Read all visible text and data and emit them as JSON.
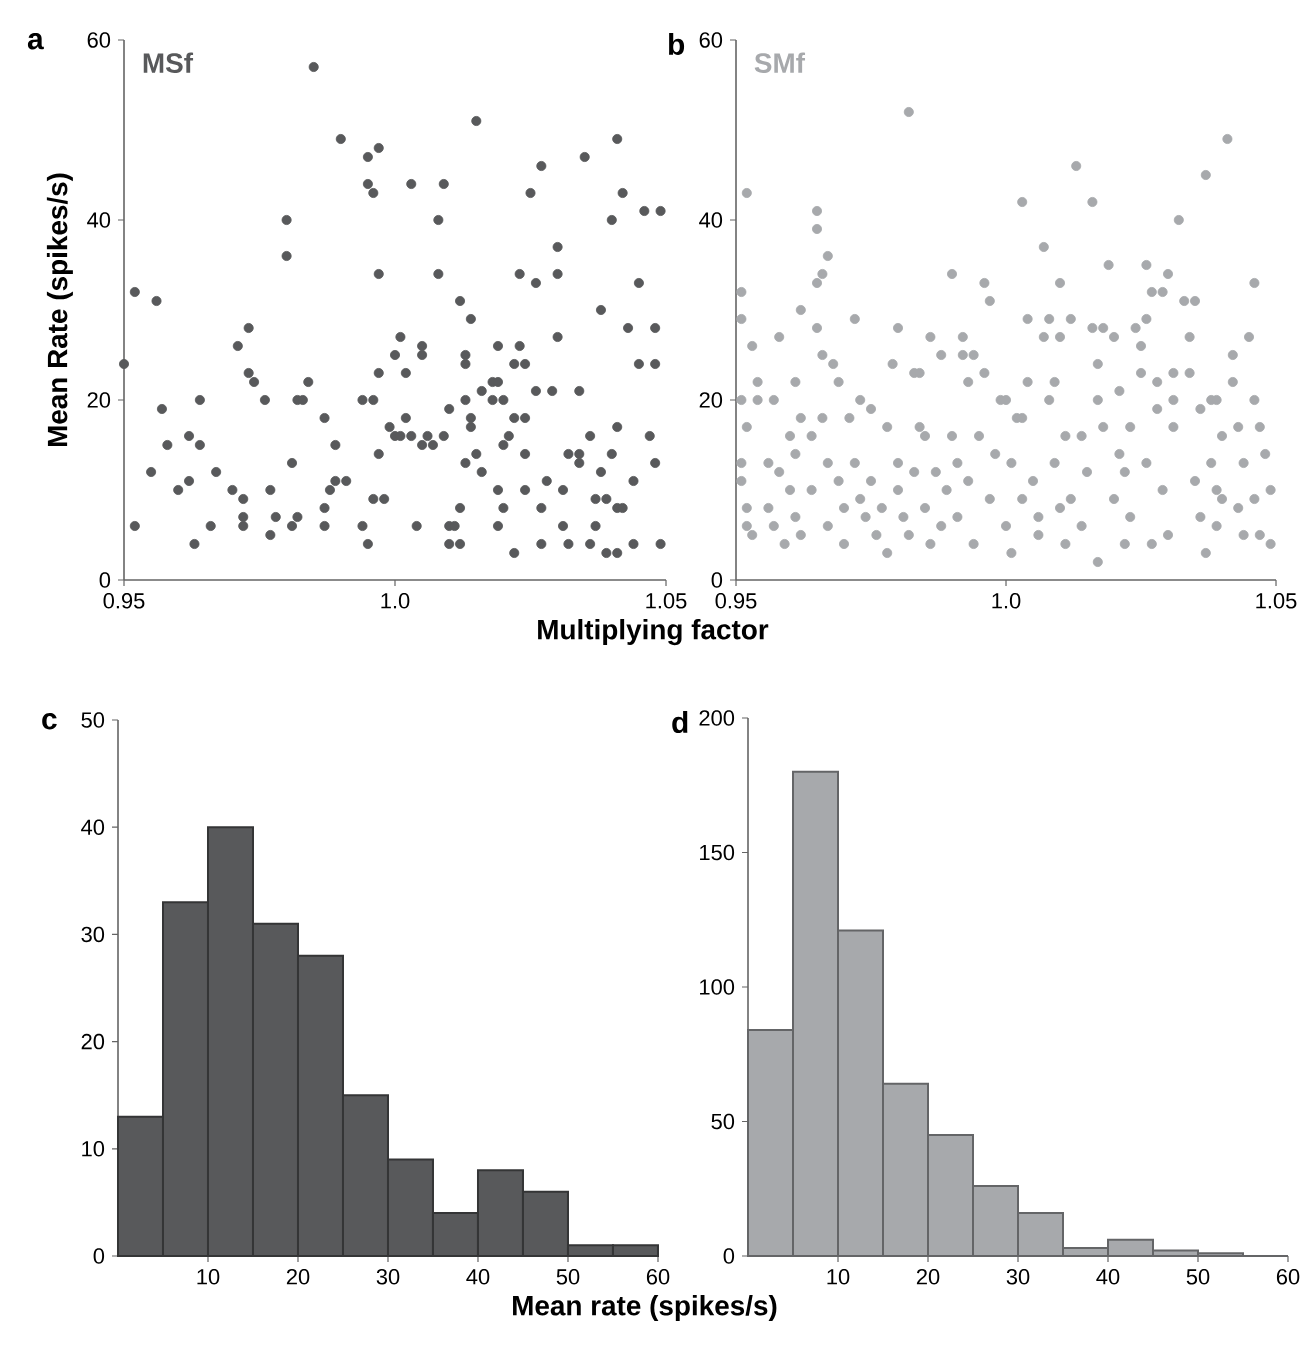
{
  "chart_data": [
    {
      "type": "scatter",
      "title": "a",
      "ylabel": "Mean Rate (spikes/s)",
      "xlabel": "Multiplying factor",
      "xlim": [
        0.95,
        1.05
      ],
      "ylim": [
        0,
        60
      ],
      "xticks": [
        0.95,
        {
          "value": 1.0,
          "label": "1.0"
        },
        1.05
      ],
      "yticks": [
        0,
        20,
        40,
        60
      ],
      "marker": "circle",
      "legend": "top left",
      "series": [
        {
          "name": "MSf",
          "color": "#58595b",
          "x": [
            0.95,
            0.952,
            0.952,
            0.955,
            0.956,
            0.957,
            0.958,
            0.96,
            0.962,
            0.962,
            0.963,
            0.964,
            0.964,
            0.966,
            0.967,
            0.97,
            0.971,
            0.972,
            0.972,
            0.972,
            0.973,
            0.973,
            0.974,
            0.976,
            0.977,
            0.977,
            0.978,
            0.98,
            0.98,
            0.981,
            0.981,
            0.982,
            0.982,
            0.983,
            0.984,
            0.985,
            0.987,
            0.987,
            0.987,
            0.988,
            0.989,
            0.989,
            0.99,
            0.991,
            0.994,
            0.994,
            0.995,
            0.995,
            0.996,
            0.995,
            0.996,
            0.996,
            0.997,
            0.997,
            0.997,
            0.997,
            0.998,
            0.999,
            1.0,
            1.0,
            1.001,
            1.001,
            1.002,
            1.002,
            1.003,
            1.003,
            1.004,
            1.005,
            1.005,
            1.005,
            1.006,
            1.007,
            1.008,
            1.008,
            1.009,
            1.009,
            1.01,
            1.01,
            1.01,
            1.011,
            1.012,
            1.012,
            1.012,
            1.013,
            1.013,
            1.013,
            1.013,
            1.014,
            1.014,
            1.014,
            1.015,
            1.015,
            1.016,
            1.016,
            1.018,
            1.018,
            1.019,
            1.019,
            1.019,
            1.019,
            1.02,
            1.02,
            1.02,
            1.021,
            1.022,
            1.022,
            1.022,
            1.023,
            1.023,
            1.024,
            1.024,
            1.024,
            1.024,
            1.025,
            1.026,
            1.026,
            1.027,
            1.027,
            1.027,
            1.028,
            1.029,
            1.03,
            1.03,
            1.03,
            1.031,
            1.031,
            1.032,
            1.032,
            1.034,
            1.034,
            1.034,
            1.035,
            1.036,
            1.036,
            1.037,
            1.037,
            1.038,
            1.038,
            1.039,
            1.039,
            1.04,
            1.04,
            1.041,
            1.041,
            1.041,
            1.041,
            1.042,
            1.042,
            1.043,
            1.044,
            1.044,
            1.045,
            1.045,
            1.046,
            1.049,
            1.049,
            1.048,
            1.048,
            1.047,
            1.048
          ],
          "values": [
            24,
            32,
            6,
            12,
            31,
            19,
            15,
            10,
            16,
            11,
            4,
            15,
            20,
            6,
            12,
            10,
            26,
            6,
            9,
            7,
            28,
            23,
            22,
            20,
            10,
            5,
            7,
            40,
            36,
            13,
            6,
            7,
            20,
            20,
            22,
            57,
            18,
            6,
            8,
            10,
            11,
            15,
            49,
            11,
            20,
            6,
            47,
            44,
            43,
            4,
            9,
            20,
            48,
            34,
            14,
            23,
            9,
            17,
            16,
            25,
            16,
            27,
            23,
            18,
            16,
            44,
            6,
            26,
            25,
            15,
            16,
            15,
            40,
            34,
            44,
            16,
            6,
            19,
            4,
            6,
            4,
            8,
            31,
            24,
            13,
            20,
            25,
            29,
            18,
            17,
            51,
            14,
            21,
            12,
            22,
            20,
            22,
            6,
            10,
            26,
            15,
            20,
            8,
            16,
            18,
            24,
            3,
            34,
            26,
            18,
            24,
            10,
            14,
            43,
            33,
            21,
            46,
            8,
            4,
            11,
            21,
            37,
            34,
            27,
            6,
            10,
            4,
            14,
            21,
            13,
            14,
            47,
            16,
            4,
            9,
            6,
            30,
            12,
            3,
            9,
            40,
            14,
            17,
            3,
            49,
            8,
            43,
            8,
            28,
            11,
            4,
            33,
            24,
            41,
            41,
            4,
            28,
            24,
            16,
            13
          ]
        }
      ]
    },
    {
      "type": "scatter",
      "title": "b",
      "xlim": [
        0.95,
        1.05
      ],
      "ylim": [
        0,
        60
      ],
      "xticks": [
        0.95,
        {
          "value": 1.0,
          "label": "1.0"
        },
        1.05
      ],
      "yticks": [
        0,
        20,
        40,
        60
      ],
      "marker": "circle",
      "legend": "top left",
      "series": [
        {
          "name": "SMf",
          "color": "#a7a9ac",
          "x": [
            0.951,
            0.951,
            0.952,
            0.953,
            0.951,
            0.952,
            0.951,
            0.951,
            0.952,
            0.952,
            0.953,
            0.954,
            0.954,
            0.956,
            0.956,
            0.957,
            0.957,
            0.958,
            0.958,
            0.959,
            0.96,
            0.96,
            0.961,
            0.961,
            0.961,
            0.962,
            0.962,
            0.962,
            0.964,
            0.964,
            0.965,
            0.965,
            0.965,
            0.965,
            0.966,
            0.966,
            0.967,
            0.966,
            0.967,
            0.967,
            0.968,
            0.969,
            0.969,
            0.97,
            0.97,
            0.971,
            0.972,
            0.972,
            0.973,
            0.973,
            0.974,
            0.975,
            0.975,
            0.976,
            0.977,
            0.978,
            0.978,
            0.979,
            0.98,
            0.98,
            0.98,
            0.981,
            0.982,
            0.982,
            0.983,
            0.983,
            0.984,
            0.984,
            0.985,
            0.985,
            0.986,
            0.986,
            0.987,
            0.988,
            0.988,
            0.989,
            0.99,
            0.99,
            0.991,
            0.991,
            0.992,
            0.992,
            0.993,
            0.993,
            0.994,
            0.994,
            0.995,
            0.996,
            0.996,
            0.997,
            0.997,
            0.998,
            0.999,
            1.0,
            1.0,
            1.001,
            1.001,
            1.002,
            1.003,
            1.003,
            1.003,
            1.004,
            1.004,
            1.005,
            1.006,
            1.006,
            1.007,
            1.007,
            1.008,
            1.008,
            1.009,
            1.009,
            1.01,
            1.01,
            1.01,
            1.011,
            1.011,
            1.012,
            1.012,
            1.013,
            1.014,
            1.014,
            1.015,
            1.016,
            1.016,
            1.017,
            1.017,
            1.017,
            1.018,
            1.018,
            1.019,
            1.02,
            1.02,
            1.021,
            1.021,
            1.022,
            1.022,
            1.023,
            1.023,
            1.024,
            1.025,
            1.025,
            1.026,
            1.026,
            1.026,
            1.027,
            1.027,
            1.028,
            1.028,
            1.029,
            1.029,
            1.03,
            1.03,
            1.031,
            1.031,
            1.031,
            1.032,
            1.033,
            1.034,
            1.034,
            1.035,
            1.035,
            1.036,
            1.036,
            1.037,
            1.037,
            1.038,
            1.038,
            1.039,
            1.039,
            1.039,
            1.04,
            1.04,
            1.041,
            1.042,
            1.042,
            1.043,
            1.043,
            1.044,
            1.044,
            1.045,
            1.046,
            1.046,
            1.046,
            1.047,
            1.047,
            1.048,
            1.049,
            1.049
          ],
          "values": [
            32,
            29,
            43,
            26,
            20,
            17,
            13,
            11,
            8,
            6,
            5,
            22,
            20,
            13,
            8,
            20,
            6,
            27,
            12,
            4,
            16,
            10,
            7,
            22,
            14,
            30,
            18,
            5,
            16,
            10,
            41,
            39,
            33,
            28,
            25,
            34,
            36,
            18,
            13,
            6,
            24,
            22,
            11,
            8,
            4,
            18,
            29,
            13,
            9,
            20,
            7,
            19,
            11,
            5,
            8,
            17,
            3,
            24,
            13,
            10,
            28,
            7,
            52,
            5,
            23,
            12,
            23,
            17,
            16,
            8,
            4,
            27,
            12,
            6,
            25,
            10,
            34,
            16,
            13,
            7,
            27,
            25,
            22,
            11,
            4,
            25,
            16,
            33,
            23,
            9,
            31,
            14,
            20,
            20,
            6,
            13,
            3,
            18,
            9,
            18,
            42,
            29,
            22,
            11,
            5,
            7,
            37,
            27,
            29,
            20,
            13,
            22,
            33,
            8,
            27,
            16,
            4,
            29,
            9,
            46,
            16,
            6,
            12,
            42,
            28,
            24,
            20,
            2,
            17,
            28,
            35,
            27,
            9,
            14,
            21,
            4,
            12,
            7,
            17,
            28,
            26,
            23,
            35,
            29,
            13,
            4,
            32,
            19,
            22,
            32,
            10,
            5,
            34,
            17,
            20,
            23,
            40,
            31,
            27,
            23,
            11,
            31,
            7,
            19,
            45,
            3,
            13,
            20,
            10,
            20,
            6,
            16,
            9,
            49,
            22,
            25,
            17,
            8,
            13,
            5,
            27,
            33,
            20,
            9,
            17,
            5,
            14,
            10,
            4
          ]
        }
      ]
    },
    {
      "type": "histogram",
      "title": "c",
      "xlabel": "Mean rate (spikes/s)",
      "color": "#58595b",
      "bins": [
        0,
        5,
        10,
        15,
        20,
        25,
        30,
        35,
        40,
        45,
        50,
        55,
        60
      ],
      "values": [
        13,
        33,
        40,
        31,
        28,
        15,
        9,
        4,
        8,
        6,
        1,
        1
      ],
      "xlim": [
        0,
        60
      ],
      "ylim": [
        0,
        50
      ],
      "xticks": [
        10,
        20,
        30,
        40,
        50,
        60
      ],
      "yticks": [
        0,
        10,
        20,
        30,
        40,
        50
      ]
    },
    {
      "type": "histogram",
      "title": "d",
      "color": "#a7a9ac",
      "bins": [
        0,
        5,
        10,
        15,
        20,
        25,
        30,
        35,
        40,
        45,
        50,
        55,
        60
      ],
      "values": [
        84,
        180,
        121,
        64,
        45,
        26,
        16,
        3,
        6,
        2,
        1,
        0
      ],
      "xlim": [
        0,
        60
      ],
      "ylim": [
        0,
        200
      ],
      "xticks": [
        10,
        20,
        30,
        40,
        50,
        60
      ],
      "yticks": [
        0,
        50,
        100,
        150,
        200
      ]
    }
  ]
}
